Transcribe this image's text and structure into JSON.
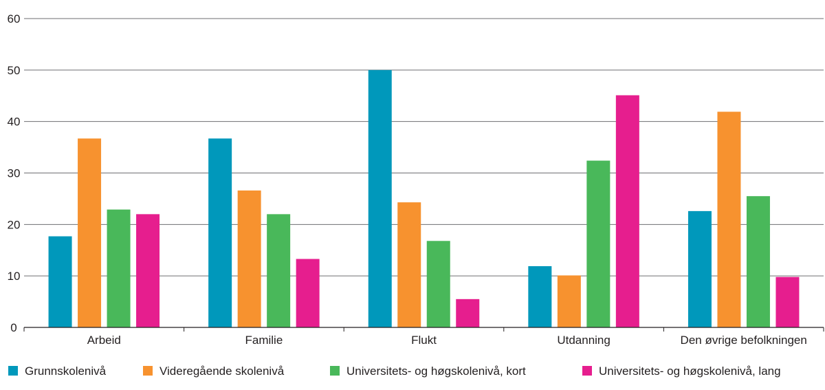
{
  "chart_data": {
    "type": "bar",
    "title": "",
    "xlabel": "",
    "ylabel": "",
    "categories": [
      "Arbeid",
      "Familie",
      "Flukt",
      "Utdanning",
      "Den øvrige befolkningen"
    ],
    "ylim": [
      0,
      60
    ],
    "yticks": [
      "0",
      "10",
      "20",
      "30",
      "40",
      "50",
      "60"
    ],
    "grid": true,
    "legend_position": "bottom",
    "series": [
      {
        "name": "Grunnskolenivå",
        "color": "#0098bb",
        "values": [
          17.7,
          36.7,
          50.0,
          11.9,
          22.6
        ]
      },
      {
        "name": "Videregående skolenivå",
        "color": "#f7922f",
        "values": [
          36.7,
          26.6,
          24.3,
          10.1,
          41.9
        ]
      },
      {
        "name": "Universitets- og høgskolenivå, kort",
        "color": "#49b85a",
        "values": [
          22.9,
          22.0,
          16.8,
          32.4,
          25.5
        ]
      },
      {
        "name": "Universitets- og høgskolenivå, lang",
        "color": "#e61e8e",
        "values": [
          22.0,
          13.3,
          5.5,
          45.1,
          9.8
        ]
      }
    ]
  }
}
